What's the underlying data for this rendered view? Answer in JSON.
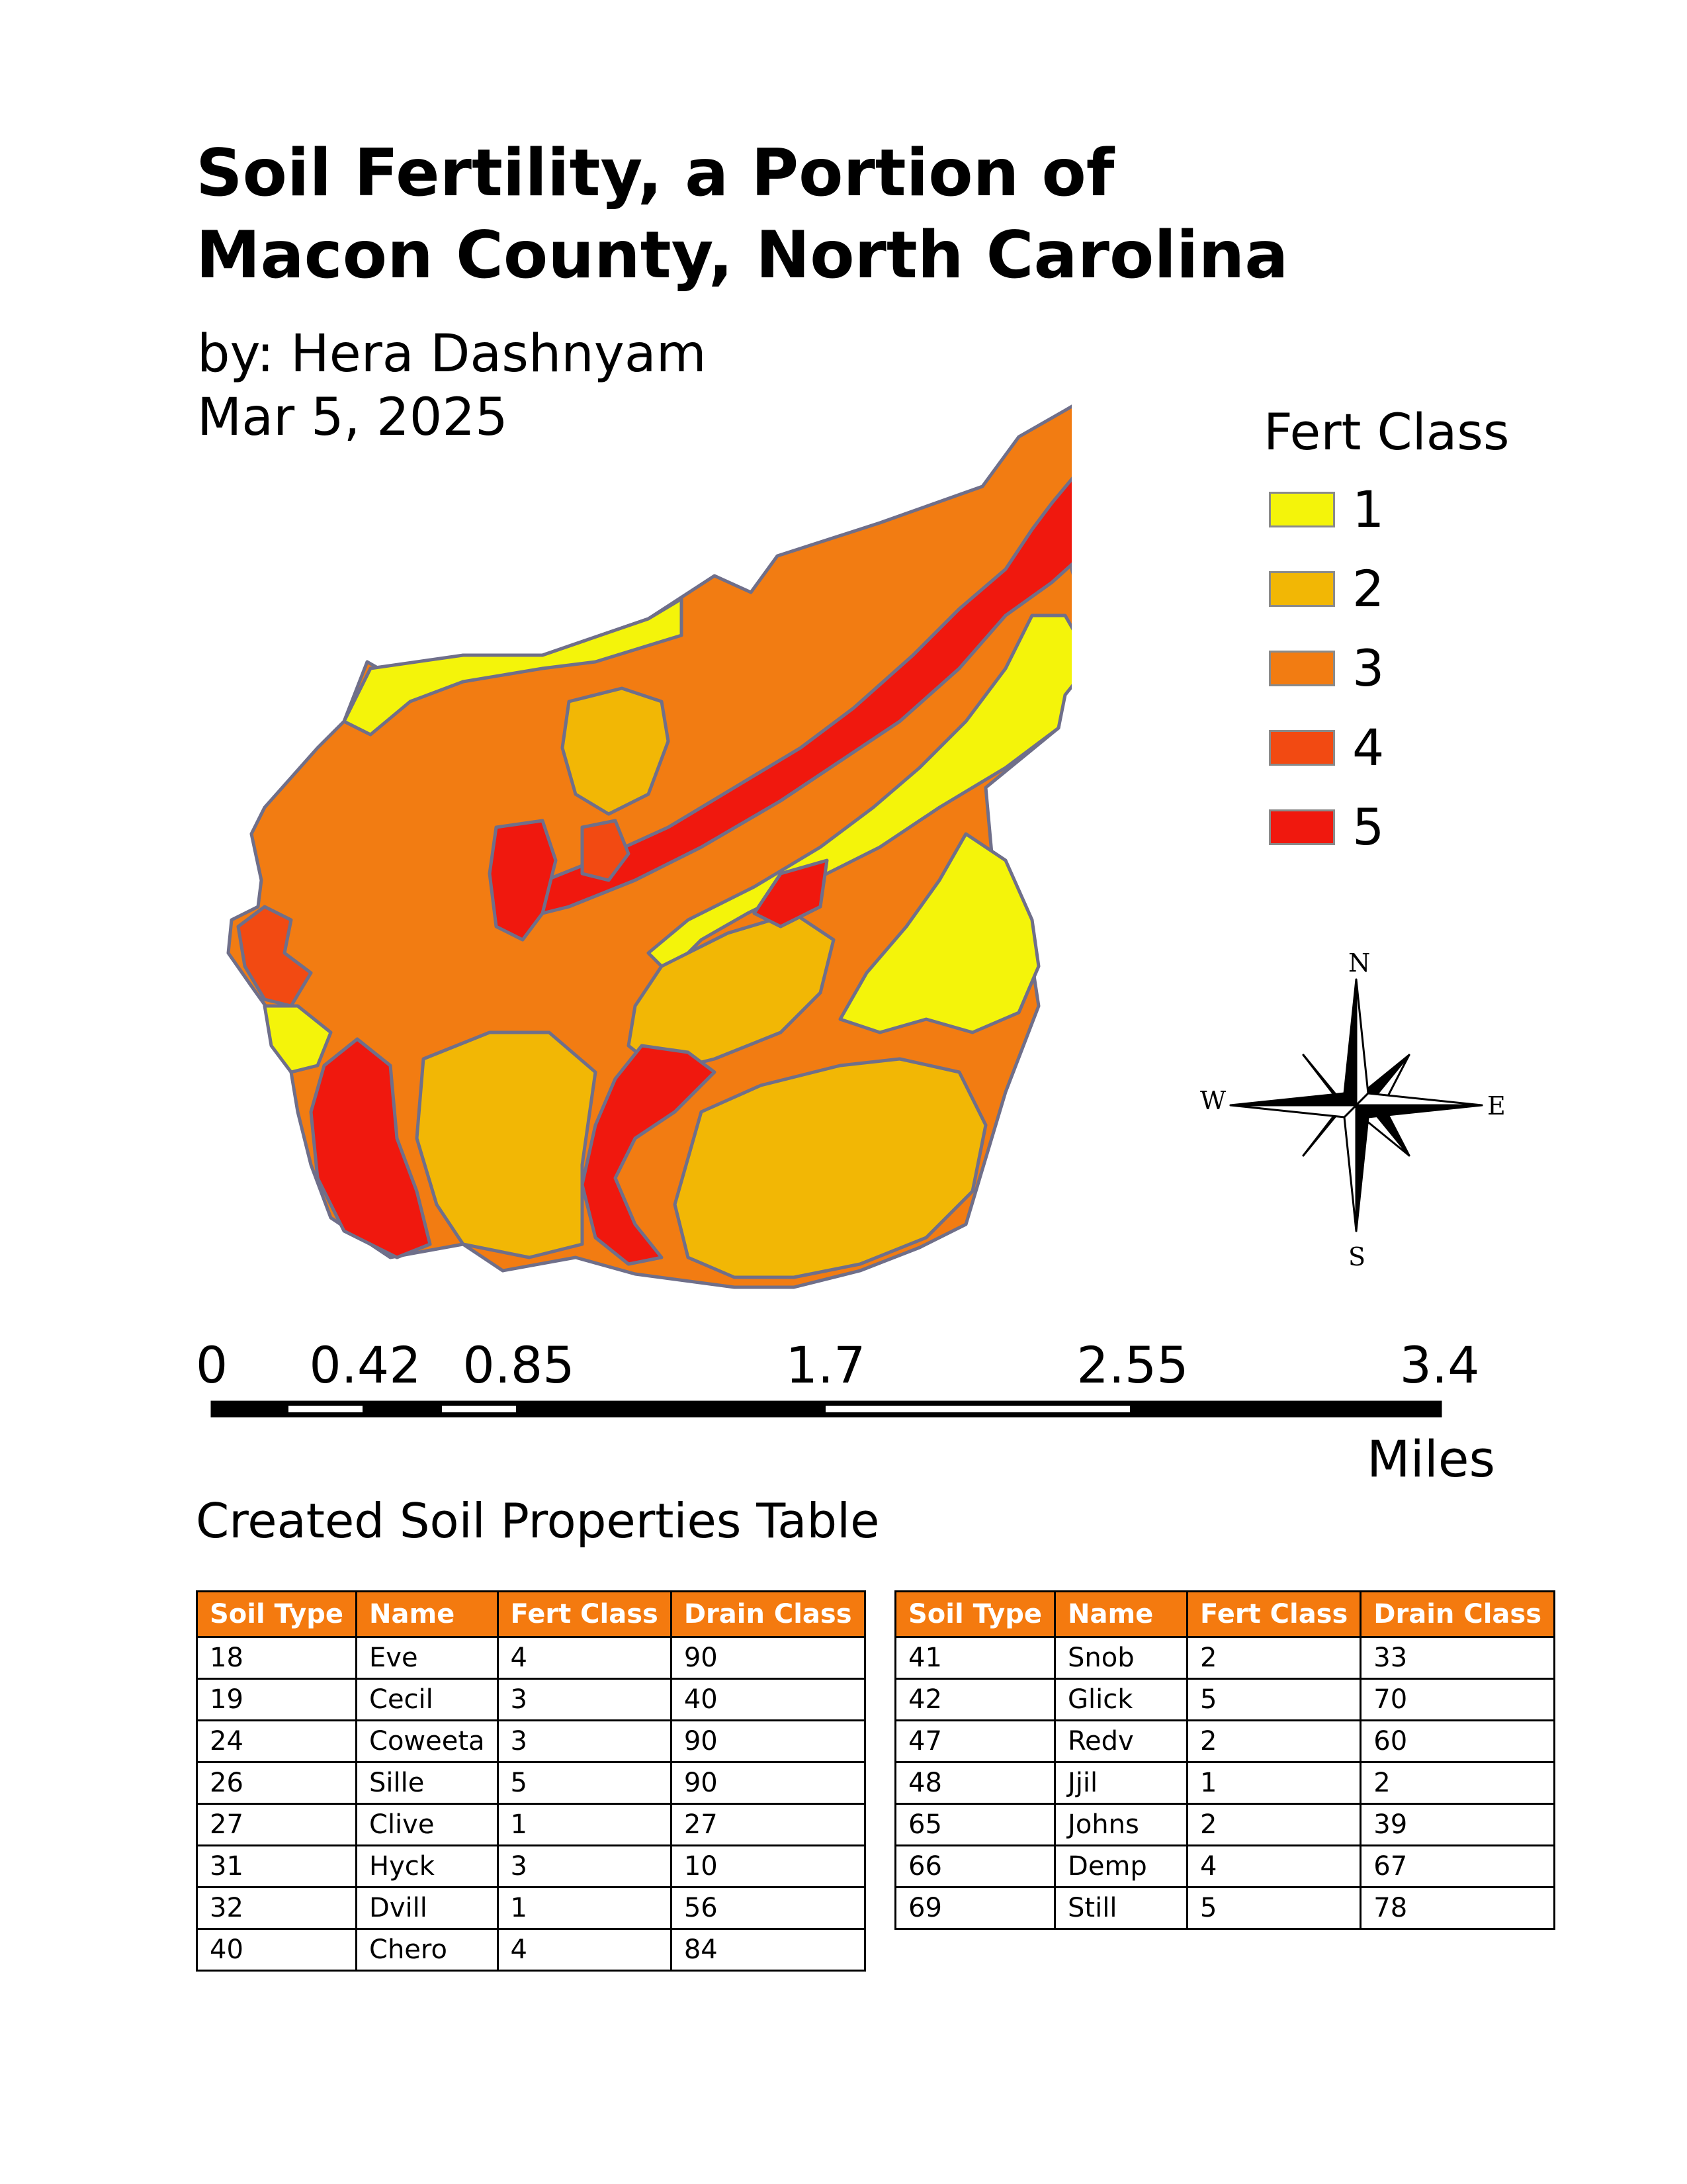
{
  "map_layout": {
    "title_line1": "Soil Fertility, a Portion of",
    "title_line2": "Macon County, North Carolina",
    "author": "by: Hera Dashnyam",
    "date": "Mar 5, 2025"
  },
  "legend": {
    "title": "Fert Class",
    "items": [
      {
        "label": "1",
        "color": "#f4f40a"
      },
      {
        "label": "2",
        "color": "#f2b705"
      },
      {
        "label": "3",
        "color": "#f27c12"
      },
      {
        "label": "4",
        "color": "#f24a12"
      },
      {
        "label": "5",
        "color": "#f0180e"
      }
    ]
  },
  "compass": {
    "n": "N",
    "s": "S",
    "e": "E",
    "w": "W"
  },
  "scale_bar": {
    "labels": [
      "0",
      "0.42",
      "0.85",
      "1.7",
      "2.55",
      "3.4"
    ],
    "unit": "Miles"
  },
  "table_heading": "Created Soil Properties Table",
  "table_headers": [
    "Soil Type",
    "Name",
    "Fert Class",
    "Drain Class"
  ],
  "table_left": [
    [
      "18",
      "Eve",
      "4",
      "90"
    ],
    [
      "19",
      "Cecil",
      "3",
      "40"
    ],
    [
      "24",
      "Coweeta",
      "3",
      "90"
    ],
    [
      "26",
      "Sille",
      "5",
      "90"
    ],
    [
      "27",
      "Clive",
      "1",
      "27"
    ],
    [
      "31",
      "Hyck",
      "3",
      "10"
    ],
    [
      "32",
      "Dvill",
      "1",
      "56"
    ],
    [
      "40",
      "Chero",
      "4",
      "84"
    ]
  ],
  "table_right": [
    [
      "41",
      "Snob",
      "2",
      "33"
    ],
    [
      "42",
      "Glick",
      "5",
      "70"
    ],
    [
      "47",
      "Redv",
      "2",
      "60"
    ],
    [
      "48",
      "Jjil",
      "1",
      "2"
    ],
    [
      "65",
      "Johns",
      "2",
      "39"
    ],
    [
      "66",
      "Demp",
      "4",
      "67"
    ],
    [
      "69",
      "Still",
      "5",
      "78"
    ]
  ]
}
